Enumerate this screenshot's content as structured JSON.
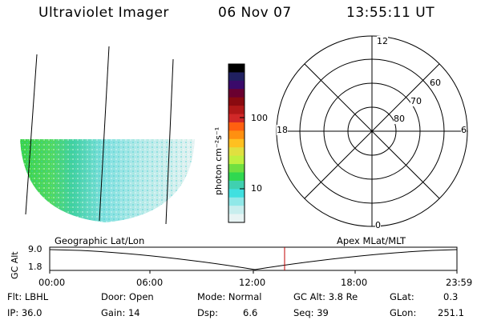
{
  "header": {
    "title": "Ultraviolet Imager",
    "date": "06 Nov 07",
    "time": "13:55:11 UT"
  },
  "colorbar": {
    "label": "photon cm⁻²s⁻¹",
    "ticks": [
      "100",
      "10"
    ],
    "colors": [
      "#000000",
      "#202060",
      "#3a0a6a",
      "#6a0030",
      "#8a0a10",
      "#b01818",
      "#d02828",
      "#ff6010",
      "#ff9010",
      "#ffc020",
      "#e0e040",
      "#c0f040",
      "#70e040",
      "#30d850",
      "#40d0b0",
      "#40e0e0",
      "#90e8e8",
      "#c8eeee",
      "#e8f4f4"
    ]
  },
  "polar": {
    "mlt_labels": {
      "top": "12",
      "left": "18",
      "right": "6",
      "bottom": "0"
    },
    "lat_labels": [
      "60",
      "70",
      "80"
    ]
  },
  "timeline": {
    "ylabel": "GC Alt",
    "ymax": "9.0",
    "ymin": "1.8",
    "left_caption": "Geographic Lat/Lon",
    "right_caption": "Apex MLat/MLT",
    "times": [
      "00:00",
      "06:00",
      "12:00",
      "18:00",
      "23:59"
    ],
    "current_time_fraction": 0.58
  },
  "info": {
    "flt": "Flt: LBHL",
    "door": "Door: Open",
    "mode": "Mode: Normal",
    "gcalt": "GC Alt: 3.8 Re",
    "glat_label": "GLat:",
    "glat_value": "0.3",
    "ip": "IP: 36.0",
    "gain": "Gain: 14",
    "dsp_label": "Dsp:",
    "dsp_value": "6.6",
    "seq": "Seq: 39",
    "glon_label": "GLon:",
    "glon_value": "251.1"
  }
}
